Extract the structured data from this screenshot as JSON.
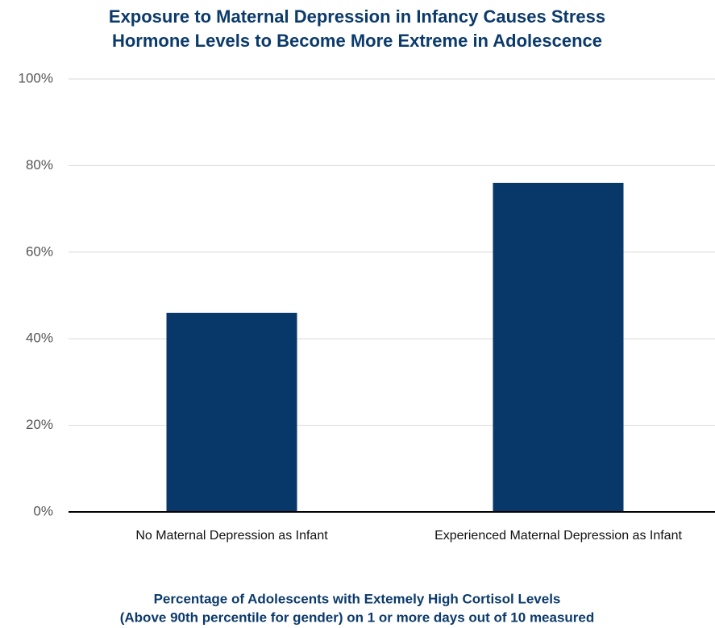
{
  "chart_data": {
    "type": "bar",
    "title": [
      "Exposure to Maternal Depression in Infancy Causes Stress",
      "Hormone Levels to Become More Extreme in Adolescence"
    ],
    "xlabel": [
      "Percentage of Adolescents with Extemely High Cortisol Levels",
      "(Above 90th percentile for gender) on 1 or more days out of 10 measured"
    ],
    "categories": [
      "No Maternal Depression as Infant",
      "Experienced Maternal Depression as Infant"
    ],
    "values": [
      46,
      76
    ],
    "color": "#08386a",
    "ylim": [
      0,
      100
    ],
    "yticks": [
      {
        "value": 0,
        "label": "0%"
      },
      {
        "value": 20,
        "label": "20%"
      },
      {
        "value": 40,
        "label": "40%"
      },
      {
        "value": 60,
        "label": "60%"
      },
      {
        "value": 80,
        "label": "80%"
      },
      {
        "value": 100,
        "label": "100%"
      }
    ],
    "grid": true
  }
}
